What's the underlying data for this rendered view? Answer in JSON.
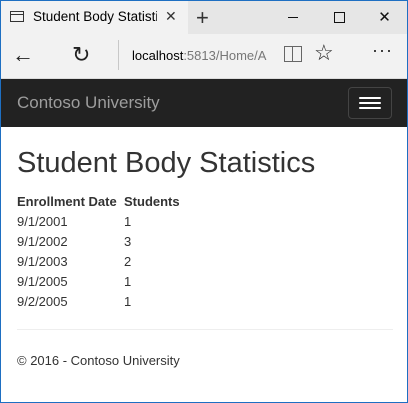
{
  "browser": {
    "tab_title": "Student Body Statistics",
    "tab_close": "✕",
    "new_tab": "+",
    "win_close": "✕",
    "url_host": "localhost",
    "url_path": ":5813/Home/A",
    "icons": [
      "back-arrow-icon",
      "refresh-icon",
      "reading-view-icon",
      "favorite-star-icon",
      "more-icon"
    ]
  },
  "navbar": {
    "brand": "Contoso University"
  },
  "page": {
    "title": "Student Body Statistics",
    "table": {
      "headers": [
        "Enrollment Date",
        "Students"
      ],
      "rows": [
        [
          "9/1/2001",
          "1"
        ],
        [
          "9/1/2002",
          "3"
        ],
        [
          "9/1/2003",
          "2"
        ],
        [
          "9/1/2005",
          "1"
        ],
        [
          "9/2/2005",
          "1"
        ]
      ]
    },
    "footer": "© 2016 - Contoso University"
  }
}
